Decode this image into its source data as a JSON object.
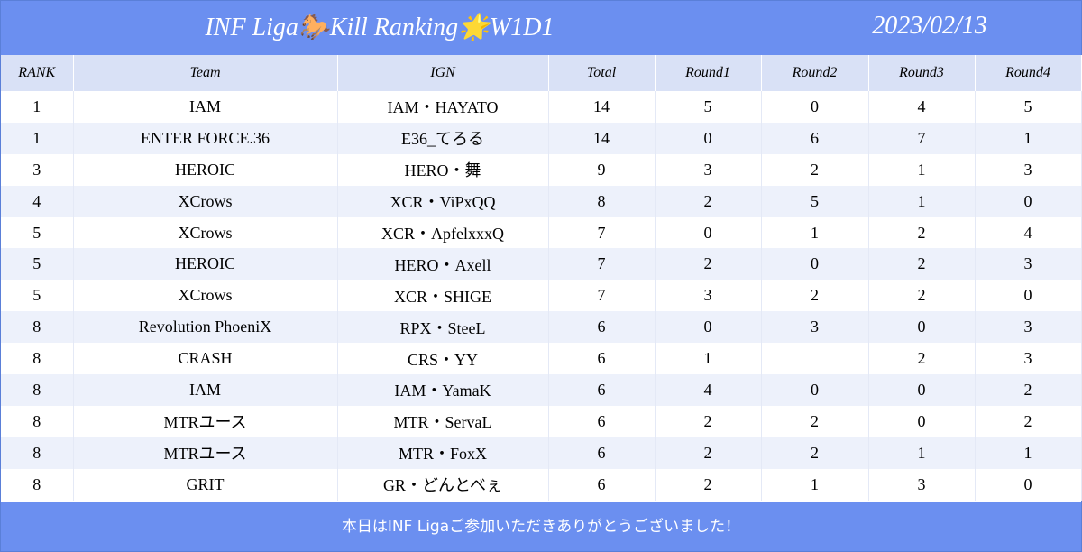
{
  "header": {
    "title": "INF Liga🐎Kill Ranking🌟W1D1",
    "date": "2023/02/13"
  },
  "table": {
    "columns": [
      "RANK",
      "Team",
      "IGN",
      "Total",
      "Round1",
      "Round2",
      "Round3",
      "Round4"
    ],
    "rows": [
      [
        1,
        "IAM",
        "IAM・HAYATO",
        14,
        5,
        0,
        4,
        5
      ],
      [
        1,
        "ENTER FORCE.36",
        "E36_てろる",
        14,
        0,
        6,
        7,
        1
      ],
      [
        3,
        "HEROIC",
        "HERO・舞",
        9,
        3,
        2,
        1,
        3
      ],
      [
        4,
        "XCrows",
        "XCR・ViPxQQ",
        8,
        2,
        5,
        1,
        0
      ],
      [
        5,
        "XCrows",
        "XCR・ApfelxxxQ",
        7,
        0,
        1,
        2,
        4
      ],
      [
        5,
        "HEROIC",
        "HERO・Axell",
        7,
        2,
        0,
        2,
        3
      ],
      [
        5,
        "XCrows",
        "XCR・SHIGE",
        7,
        3,
        2,
        2,
        0
      ],
      [
        8,
        "Revolution PhoeniX",
        "RPX・SteeL",
        6,
        0,
        3,
        0,
        3
      ],
      [
        8,
        "CRASH",
        "CRS・YY",
        6,
        1,
        null,
        2,
        3
      ],
      [
        8,
        "IAM",
        "IAM・YamaK",
        6,
        4,
        0,
        0,
        2
      ],
      [
        8,
        "MTRユース",
        "MTR・ServaL",
        6,
        2,
        2,
        0,
        2
      ],
      [
        8,
        "MTRユース",
        "MTR・FoxX",
        6,
        2,
        2,
        1,
        1
      ],
      [
        8,
        "GRIT",
        "GR・どんとべぇ",
        6,
        2,
        1,
        3,
        0
      ]
    ]
  },
  "footer": {
    "text": "本日はINF Ligaご参加いただきありがとうございました！"
  }
}
